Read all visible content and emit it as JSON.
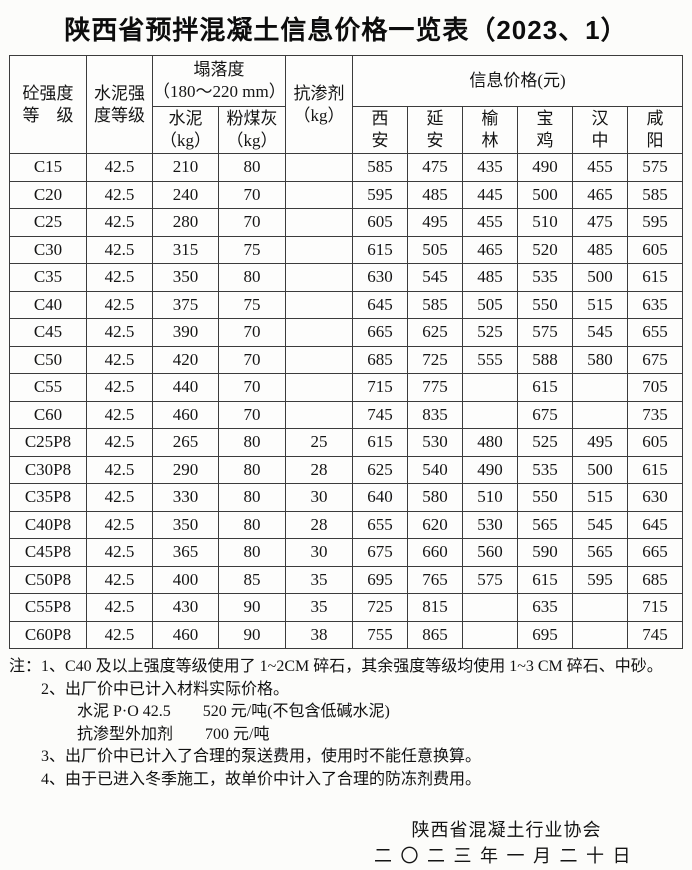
{
  "title": "陕西省预拌混凝土信息价格一览表（2023、1）",
  "table": {
    "header": {
      "concrete_grade": "砼强度\n等　级",
      "cement_grade": "水泥强\n度等级",
      "slump_group": "塌落度\n（180～220 mm）",
      "slump_cement": "水泥\n（kg）",
      "slump_flyash": "粉煤灰\n（kg）",
      "anti_seepage": "抗渗剂\n（kg）",
      "price_group": "信息价格(元)",
      "cities": [
        "西\n安",
        "延\n安",
        "榆\n林",
        "宝\n鸡",
        "汉\n中",
        "咸\n阳"
      ]
    },
    "rows": [
      [
        "C15",
        "42.5",
        "210",
        "80",
        "",
        "585",
        "475",
        "435",
        "490",
        "455",
        "575"
      ],
      [
        "C20",
        "42.5",
        "240",
        "70",
        "",
        "595",
        "485",
        "445",
        "500",
        "465",
        "585"
      ],
      [
        "C25",
        "42.5",
        "280",
        "70",
        "",
        "605",
        "495",
        "455",
        "510",
        "475",
        "595"
      ],
      [
        "C30",
        "42.5",
        "315",
        "75",
        "",
        "615",
        "505",
        "465",
        "520",
        "485",
        "605"
      ],
      [
        "C35",
        "42.5",
        "350",
        "80",
        "",
        "630",
        "545",
        "485",
        "535",
        "500",
        "615"
      ],
      [
        "C40",
        "42.5",
        "375",
        "75",
        "",
        "645",
        "585",
        "505",
        "550",
        "515",
        "635"
      ],
      [
        "C45",
        "42.5",
        "390",
        "70",
        "",
        "665",
        "625",
        "525",
        "575",
        "545",
        "655"
      ],
      [
        "C50",
        "42.5",
        "420",
        "70",
        "",
        "685",
        "725",
        "555",
        "588",
        "580",
        "675"
      ],
      [
        "C55",
        "42.5",
        "440",
        "70",
        "",
        "715",
        "775",
        "",
        "615",
        "",
        "705"
      ],
      [
        "C60",
        "42.5",
        "460",
        "70",
        "",
        "745",
        "835",
        "",
        "675",
        "",
        "735"
      ],
      [
        "C25P8",
        "42.5",
        "265",
        "80",
        "25",
        "615",
        "530",
        "480",
        "525",
        "495",
        "605"
      ],
      [
        "C30P8",
        "42.5",
        "290",
        "80",
        "28",
        "625",
        "540",
        "490",
        "535",
        "500",
        "615"
      ],
      [
        "C35P8",
        "42.5",
        "330",
        "80",
        "30",
        "640",
        "580",
        "510",
        "550",
        "515",
        "630"
      ],
      [
        "C40P8",
        "42.5",
        "350",
        "80",
        "28",
        "655",
        "620",
        "530",
        "565",
        "545",
        "645"
      ],
      [
        "C45P8",
        "42.5",
        "365",
        "80",
        "30",
        "675",
        "660",
        "560",
        "590",
        "565",
        "665"
      ],
      [
        "C50P8",
        "42.5",
        "400",
        "85",
        "35",
        "695",
        "765",
        "575",
        "615",
        "595",
        "685"
      ],
      [
        "C55P8",
        "42.5",
        "430",
        "90",
        "35",
        "725",
        "815",
        "",
        "635",
        "",
        "715"
      ],
      [
        "C60P8",
        "42.5",
        "460",
        "90",
        "38",
        "755",
        "865",
        "",
        "695",
        "",
        "745"
      ]
    ]
  },
  "notes": [
    {
      "indent": 0,
      "text": "注：1、C40 及以上强度等级使用了 1~2CM 碎石，其余强度等级均使用 1~3 CM 碎石、中砂。"
    },
    {
      "indent": 1,
      "text": "2、出厂价中已计入材料实际价格。"
    },
    {
      "indent": 2,
      "text": "水泥  P·O 42.5　　520 元/吨(不包含低碱水泥)"
    },
    {
      "indent": 2,
      "text": "抗渗型外加剂　　700 元/吨"
    },
    {
      "indent": 1,
      "text": "3、出厂价中已计入了合理的泵送费用，使用时不能任意换算。"
    },
    {
      "indent": 1,
      "text": "4、由于已进入冬季施工，故单价中计入了合理的防冻剂费用。"
    }
  ],
  "footer": {
    "org": "陕西省混凝土行业协会",
    "date": "二〇二三年一月二十日"
  }
}
